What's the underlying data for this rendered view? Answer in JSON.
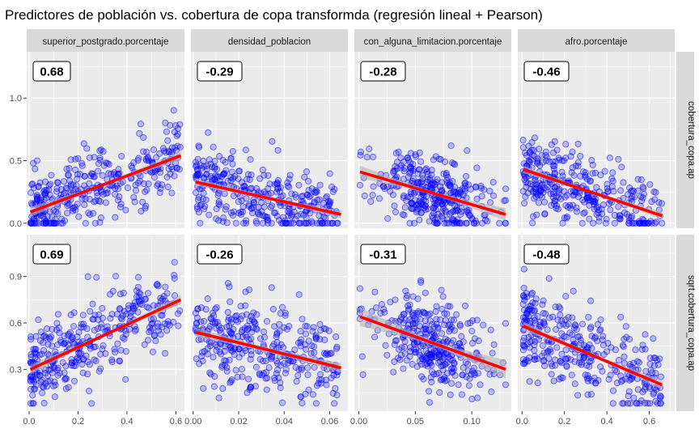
{
  "chart_data": {
    "type": "scatter",
    "title": "Predictores de población vs. cobertura de copa transformda (regresión lineal + Pearson)",
    "colors": {
      "points": "#0000ff",
      "regression_line": "#ff0000",
      "confidence_band": "#b3b3b3",
      "panel_background": "#ebebeb",
      "strip_background": "#d9d9d9",
      "grid": "#ffffff"
    },
    "columns": [
      {
        "label": "superior_postgrado.porcentaje",
        "xlim": [
          -0.01,
          0.635
        ],
        "xticks": [
          "0.0",
          "0.2",
          "0.4",
          "0.6"
        ],
        "xtick_values": [
          0,
          0.2,
          0.4,
          0.6
        ],
        "xmin": 0.005,
        "xmax": 0.62
      },
      {
        "label": "densidad_poblacion",
        "xlim": [
          -0.001,
          0.068
        ],
        "xticks": [
          "0.00",
          "0.02",
          "0.04",
          "0.06"
        ],
        "xtick_values": [
          0,
          0.02,
          0.04,
          0.06
        ],
        "xmin": 0.001,
        "xmax": 0.065
      },
      {
        "label": "con_alguna_limitacion.porcentaje",
        "xlim": [
          -0.004,
          0.135
        ],
        "xticks": [
          "0.00",
          "0.05",
          "0.10"
        ],
        "xtick_values": [
          0,
          0.05,
          0.1
        ],
        "xmin": 0.001,
        "xmax": 0.13
      },
      {
        "label": "afro.porcentaje",
        "xlim": [
          -0.02,
          0.72
        ],
        "xticks": [
          "0.0",
          "0.2",
          "0.4",
          "0.6"
        ],
        "xtick_values": [
          0,
          0.2,
          0.4,
          0.6
        ],
        "xmin": 0.005,
        "xmax": 0.66
      }
    ],
    "rows": [
      {
        "label": "cobertura_copa.ap",
        "ylim": [
          -0.04,
          1.37
        ],
        "yticks": [
          "0.0",
          "0.5",
          "1.0"
        ],
        "ytick_values": [
          0,
          0.5,
          1.0
        ],
        "ymin": 0.0,
        "ymax": 1.3
      },
      {
        "label": "sqrt.cobertura_copa.ap",
        "ylim": [
          0.03,
          1.17
        ],
        "yticks": [
          "0.3",
          "0.6",
          "0.9"
        ],
        "ytick_values": [
          0.3,
          0.6,
          0.9
        ],
        "ymin": 0.08,
        "ymax": 1.14
      }
    ],
    "panels": [
      {
        "row": 0,
        "col": 0,
        "r": "0.68",
        "line": [
          [
            0.005,
            0.09
          ],
          [
            0.62,
            0.54
          ]
        ],
        "band": [
          0.04,
          0.01,
          0.04
        ]
      },
      {
        "row": 0,
        "col": 1,
        "r": "-0.29",
        "line": [
          [
            0.001,
            0.33
          ],
          [
            0.065,
            0.07
          ]
        ],
        "band": [
          0.03,
          0.015,
          0.055
        ]
      },
      {
        "row": 0,
        "col": 2,
        "r": "-0.28",
        "line": [
          [
            0.001,
            0.41
          ],
          [
            0.13,
            0.07
          ]
        ],
        "band": [
          0.05,
          0.015,
          0.06
        ]
      },
      {
        "row": 0,
        "col": 3,
        "r": "-0.46",
        "line": [
          [
            0.005,
            0.43
          ],
          [
            0.66,
            0.06
          ]
        ],
        "band": [
          0.03,
          0.012,
          0.04
        ]
      },
      {
        "row": 1,
        "col": 0,
        "r": "0.69",
        "line": [
          [
            0.005,
            0.3
          ],
          [
            0.62,
            0.75
          ]
        ],
        "band": [
          0.03,
          0.01,
          0.03
        ]
      },
      {
        "row": 1,
        "col": 1,
        "r": "-0.26",
        "line": [
          [
            0.001,
            0.54
          ],
          [
            0.065,
            0.31
          ]
        ],
        "band": [
          0.03,
          0.015,
          0.05
        ]
      },
      {
        "row": 1,
        "col": 2,
        "r": "-0.31",
        "line": [
          [
            0.001,
            0.64
          ],
          [
            0.13,
            0.3
          ]
        ],
        "band": [
          0.06,
          0.015,
          0.06
        ]
      },
      {
        "row": 1,
        "col": 3,
        "r": "-0.48",
        "line": [
          [
            0.005,
            0.58
          ],
          [
            0.66,
            0.2
          ]
        ],
        "band": [
          0.03,
          0.012,
          0.04
        ]
      }
    ]
  }
}
